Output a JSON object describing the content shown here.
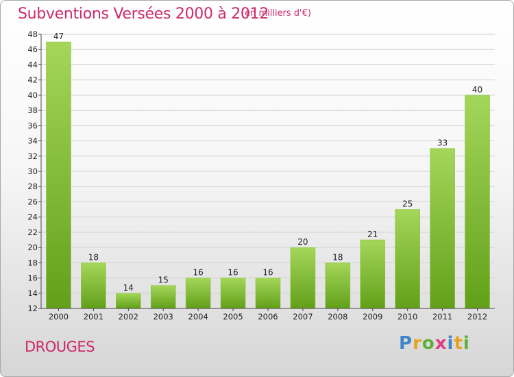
{
  "header": {
    "title": "Subventions Versées 2000 à 2012",
    "unit": "(en milliers d'€)"
  },
  "footer": {
    "commune": "DROUGES",
    "logo": [
      "P",
      "r",
      "o",
      "x",
      "i",
      "t",
      "i"
    ]
  },
  "colors": {
    "accent": "#cc2a68",
    "bar_light": "#a4d65a",
    "bar_dark": "#62a019",
    "grid": "#d0d0d0",
    "axis": "#444444"
  },
  "chart_data": {
    "type": "bar",
    "categories": [
      "2000",
      "2001",
      "2002",
      "2003",
      "2004",
      "2005",
      "2006",
      "2007",
      "2008",
      "2009",
      "2010",
      "2011",
      "2012"
    ],
    "values": [
      47,
      18,
      14,
      15,
      16,
      16,
      16,
      20,
      18,
      21,
      25,
      33,
      40
    ],
    "value_labels": [
      "47",
      "18",
      "14",
      "15",
      "16",
      "16",
      "16",
      "20",
      "18",
      "21",
      "25",
      "33",
      "40"
    ],
    "ylim": [
      12,
      48
    ],
    "yticks": [
      "12",
      "14",
      "16",
      "18",
      "20",
      "22",
      "24",
      "26",
      "28",
      "30",
      "32",
      "34",
      "36",
      "38",
      "40",
      "42",
      "44",
      "46",
      "48"
    ],
    "grid": true
  }
}
